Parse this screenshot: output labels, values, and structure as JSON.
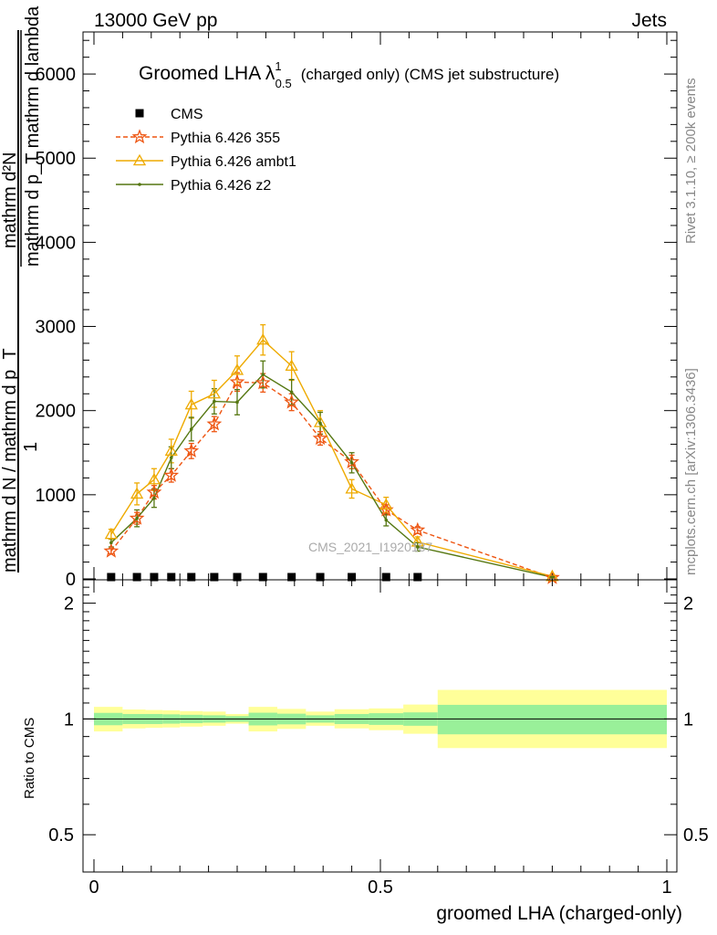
{
  "header": {
    "energy_label": "13000 GeV pp",
    "category_label": "Jets"
  },
  "side_text": {
    "rivet_version": "Rivet 3.1.10, ≥ 200k events",
    "source": "mcplots.cern.ch [arXiv:1306.3436]"
  },
  "main_plot": {
    "title_prefix": "Groomed LHA λ",
    "title_sup": "1",
    "title_sub": "0.5",
    "title_suffix": "(charged only) (CMS jet substructure)",
    "ylabel_numerator": "1",
    "ylabel_denominator": "mathrm d N / mathrm d p_T",
    "ylabel_top": "mathrm d²N",
    "ylabel_bottom": "mathrm d p_T mathrm d lambda",
    "watermark": "CMS_2021_I1920187"
  },
  "ratio_plot": {
    "ylabel": "Ratio to CMS",
    "y_ticks": [
      "0.5",
      "1",
      "2"
    ]
  },
  "x_axis": {
    "label": "groomed LHA (charged-only)",
    "ticks": [
      "0",
      "0.5",
      "1"
    ]
  },
  "chart_data": [
    {
      "type": "line",
      "title": "Groomed LHA λ^1_0.5 (charged only) (CMS jet substructure)",
      "xlabel": "groomed LHA (charged-only)",
      "ylabel": "1/(dN/dpT) d²N/(dpT dλ)",
      "xlim": [
        0,
        1
      ],
      "ylim": [
        0,
        6500
      ],
      "y_ticks": [
        "1000",
        "2000",
        "3000",
        "4000",
        "5000",
        "6000"
      ],
      "legend_position": "top-left",
      "series": [
        {
          "name": "CMS",
          "style": "square-marker",
          "color": "#000000",
          "x": [
            0.03,
            0.075,
            0.105,
            0.135,
            0.17,
            0.21,
            0.25,
            0.295,
            0.345,
            0.395,
            0.45,
            0.51,
            0.565
          ],
          "y": [
            5,
            5,
            5,
            5,
            5,
            5,
            5,
            5,
            5,
            5,
            5,
            5,
            5
          ]
        },
        {
          "name": "Pythia 6.426 355",
          "style": "dashed-star",
          "color": "#ee5511",
          "x": [
            0.03,
            0.075,
            0.105,
            0.135,
            0.17,
            0.21,
            0.25,
            0.295,
            0.345,
            0.395,
            0.45,
            0.51,
            0.565,
            0.8
          ],
          "y": [
            330,
            720,
            1030,
            1230,
            1520,
            1840,
            2340,
            2330,
            2100,
            1670,
            1390,
            820,
            580,
            15
          ],
          "err": [
            30,
            70,
            80,
            80,
            90,
            90,
            110,
            110,
            100,
            80,
            80,
            60,
            40,
            5
          ]
        },
        {
          "name": "Pythia 6.426 ambt1",
          "style": "solid-triangle",
          "color": "#eeaa00",
          "x": [
            0.03,
            0.075,
            0.105,
            0.135,
            0.17,
            0.21,
            0.25,
            0.295,
            0.345,
            0.395,
            0.45,
            0.51,
            0.565,
            0.8
          ],
          "y": [
            530,
            1010,
            1180,
            1520,
            2070,
            2200,
            2480,
            2840,
            2530,
            1860,
            1070,
            880,
            440,
            30
          ],
          "err": [
            60,
            130,
            130,
            140,
            160,
            160,
            170,
            180,
            170,
            140,
            110,
            90,
            60,
            10
          ]
        },
        {
          "name": "Pythia 6.426 z2",
          "style": "solid-dot",
          "color": "#557711",
          "x": [
            0.03,
            0.075,
            0.105,
            0.135,
            0.17,
            0.21,
            0.25,
            0.295,
            0.345,
            0.395,
            0.45,
            0.51,
            0.565,
            0.8
          ],
          "y": [
            430,
            720,
            960,
            1440,
            1780,
            2110,
            2100,
            2430,
            2220,
            1850,
            1380,
            700,
            380,
            20
          ],
          "err": [
            50,
            100,
            110,
            130,
            140,
            150,
            150,
            160,
            150,
            130,
            120,
            70,
            50,
            8
          ]
        }
      ]
    },
    {
      "type": "area",
      "title": "Ratio to CMS",
      "ylabel": "Ratio to CMS",
      "xlim": [
        0,
        1
      ],
      "ylim": [
        0.4,
        2.3
      ],
      "y_scale": "log",
      "reference_line": 1,
      "bins": [
        0.0,
        0.05,
        0.09,
        0.12,
        0.15,
        0.19,
        0.23,
        0.27,
        0.32,
        0.37,
        0.42,
        0.48,
        0.54,
        0.6,
        1.0
      ],
      "band_inner_lo": [
        0.963,
        0.97,
        0.97,
        0.972,
        0.975,
        0.978,
        0.983,
        0.962,
        0.968,
        0.978,
        0.97,
        0.965,
        0.96,
        0.912
      ],
      "band_inner_hi": [
        1.037,
        1.03,
        1.03,
        1.028,
        1.025,
        1.022,
        1.017,
        1.038,
        1.032,
        1.022,
        1.03,
        1.035,
        1.04,
        1.088
      ],
      "band_outer_lo": [
        0.928,
        0.945,
        0.948,
        0.95,
        0.955,
        0.96,
        0.972,
        0.928,
        0.942,
        0.96,
        0.945,
        0.935,
        0.915,
        0.84
      ],
      "band_outer_hi": [
        1.075,
        1.058,
        1.055,
        1.053,
        1.048,
        1.045,
        1.03,
        1.075,
        1.062,
        1.045,
        1.06,
        1.065,
        1.09,
        1.19
      ]
    }
  ]
}
